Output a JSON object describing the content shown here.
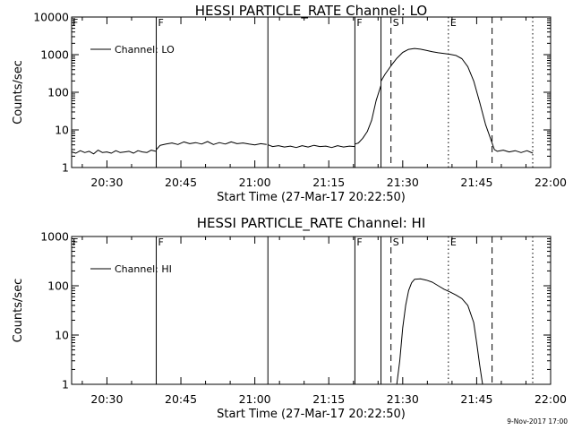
{
  "footer": {
    "stamp": "9-Nov-2017 17:00"
  },
  "chart_data": [
    {
      "type": "line",
      "title": "HESSI PARTICLE_RATE Channel: LO",
      "xlabel": "Start Time (27-Mar-17 20:22:50)",
      "ylabel": "Counts/sec",
      "yscale": "log",
      "ylim": [
        1,
        10000
      ],
      "xlim": [
        20.3806,
        22.0
      ],
      "x_ticks": [
        "20:30",
        "20:45",
        "21:00",
        "21:15",
        "21:30",
        "21:45",
        "22:00"
      ],
      "y_ticks": [
        "1",
        "10",
        "100",
        "1000",
        "10000"
      ],
      "grid": false,
      "legend": {
        "position": "top-left",
        "entries": [
          "Channel: LO"
        ]
      },
      "markers": [
        {
          "label": "F",
          "x": 20.6667,
          "style": "solid"
        },
        {
          "label": "",
          "x": 21.0442,
          "style": "solid"
        },
        {
          "label": "F",
          "x": 21.3383,
          "style": "solid"
        },
        {
          "label": "",
          "x": 21.4265,
          "style": "solid"
        },
        {
          "label": "S",
          "x": 21.4603,
          "style": "dashed"
        },
        {
          "label": "E",
          "x": 21.6544,
          "style": "dotted"
        },
        {
          "label": "",
          "x": 21.8021,
          "style": "dashed"
        },
        {
          "label": "",
          "x": 21.9395,
          "style": "dotted"
        }
      ],
      "series": [
        {
          "name": "Channel: LO",
          "segments": [
            {
              "x": [
                20.3806,
                20.395,
                20.41,
                20.425,
                20.44,
                20.455,
                20.47,
                20.485,
                20.5,
                20.515,
                20.53,
                20.545,
                20.56,
                20.575,
                20.59,
                20.605,
                20.62,
                20.635,
                20.65,
                20.665
              ],
              "y": [
                2.6,
                2.4,
                2.8,
                2.5,
                2.7,
                2.3,
                2.9,
                2.5,
                2.6,
                2.4,
                2.8,
                2.5,
                2.6,
                2.7,
                2.4,
                2.8,
                2.6,
                2.5,
                2.9,
                2.7
              ]
            },
            {
              "x": [
                20.667,
                20.68,
                20.7,
                20.72,
                20.74,
                20.76,
                20.78,
                20.8,
                20.82,
                20.84,
                20.86,
                20.88,
                20.9,
                20.92,
                20.94,
                20.96,
                20.98,
                21.0,
                21.02,
                21.04
              ],
              "y": [
                3.0,
                3.9,
                4.2,
                4.5,
                4.1,
                4.8,
                4.3,
                4.6,
                4.2,
                4.9,
                4.1,
                4.6,
                4.2,
                4.8,
                4.3,
                4.5,
                4.2,
                4.0,
                4.3,
                4.1
              ]
            },
            {
              "x": [
                21.045,
                21.06,
                21.08,
                21.1,
                21.12,
                21.14,
                21.16,
                21.18,
                21.2,
                21.22,
                21.24,
                21.26,
                21.28,
                21.3,
                21.32,
                21.338
              ],
              "y": [
                4.0,
                3.6,
                3.8,
                3.5,
                3.7,
                3.4,
                3.8,
                3.5,
                3.9,
                3.6,
                3.7,
                3.4,
                3.8,
                3.5,
                3.7,
                3.6
              ]
            },
            {
              "x": [
                21.339,
                21.35,
                21.365,
                21.38,
                21.395,
                21.41,
                21.426
              ],
              "y": [
                4.2,
                4.5,
                6,
                9,
                18,
                60,
                150
              ]
            },
            {
              "x": [
                21.427,
                21.44,
                21.46,
                21.48,
                21.5,
                21.52,
                21.54,
                21.56,
                21.58,
                21.6,
                21.62,
                21.64,
                21.66,
                21.68,
                21.7,
                21.72,
                21.74,
                21.76,
                21.78,
                21.8,
                21.81,
                21.82,
                21.84,
                21.86,
                21.88,
                21.9,
                21.92,
                21.94
              ],
              "y": [
                200,
                300,
                500,
                800,
                1150,
                1380,
                1460,
                1400,
                1300,
                1200,
                1120,
                1070,
                1020,
                950,
                780,
                480,
                200,
                55,
                14,
                5,
                3,
                2.7,
                2.9,
                2.6,
                2.8,
                2.5,
                2.8,
                2.4
              ]
            }
          ]
        }
      ]
    },
    {
      "type": "line",
      "title": "HESSI PARTICLE_RATE Channel: HI",
      "xlabel": "Start Time (27-Mar-17 20:22:50)",
      "ylabel": "Counts/sec",
      "yscale": "log",
      "ylim": [
        1,
        1000
      ],
      "xlim": [
        20.3806,
        22.0
      ],
      "x_ticks": [
        "20:30",
        "20:45",
        "21:00",
        "21:15",
        "21:30",
        "21:45",
        "22:00"
      ],
      "y_ticks": [
        "1",
        "10",
        "100",
        "1000"
      ],
      "grid": false,
      "legend": {
        "position": "top-left",
        "entries": [
          "Channel: HI"
        ]
      },
      "markers": [
        {
          "label": "F",
          "x": 20.6667,
          "style": "solid"
        },
        {
          "label": "",
          "x": 21.0442,
          "style": "solid"
        },
        {
          "label": "F",
          "x": 21.3383,
          "style": "solid"
        },
        {
          "label": "",
          "x": 21.4265,
          "style": "solid"
        },
        {
          "label": "S",
          "x": 21.4603,
          "style": "dashed"
        },
        {
          "label": "E",
          "x": 21.6544,
          "style": "dotted"
        },
        {
          "label": "",
          "x": 21.8021,
          "style": "dashed"
        },
        {
          "label": "",
          "x": 21.9395,
          "style": "dotted"
        }
      ],
      "series": [
        {
          "name": "Channel: HI",
          "segments": [
            {
              "x": [
                21.48,
                21.49,
                21.5,
                21.51,
                21.52,
                21.53,
                21.54,
                21.56,
                21.58,
                21.6,
                21.62,
                21.64,
                21.66,
                21.68,
                21.7,
                21.72,
                21.74,
                21.75,
                21.76,
                21.77
              ],
              "y": [
                1,
                3,
                14,
                40,
                80,
                115,
                135,
                138,
                130,
                118,
                100,
                85,
                75,
                65,
                55,
                40,
                18,
                7,
                2.5,
                1
              ]
            }
          ]
        }
      ]
    }
  ]
}
